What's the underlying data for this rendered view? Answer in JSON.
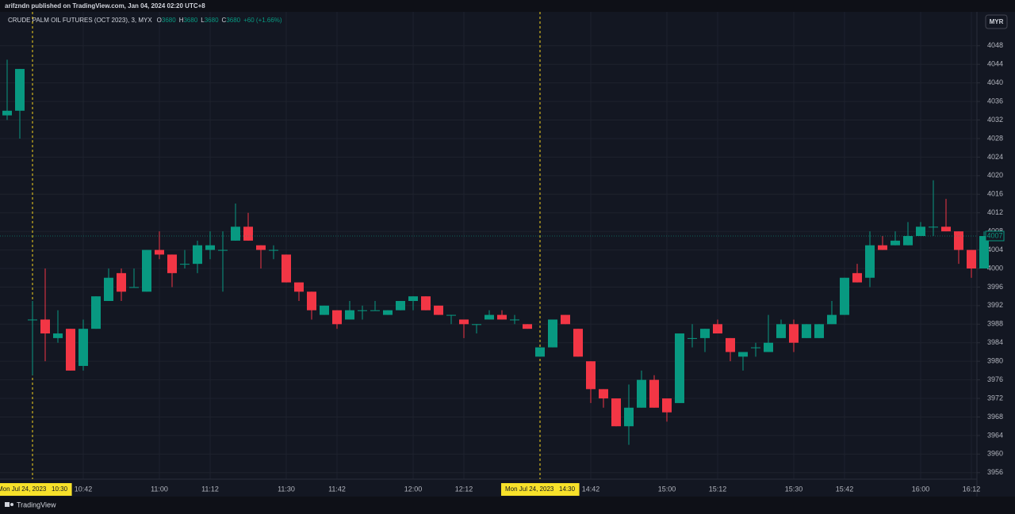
{
  "header": {
    "published": "arifzndn published on TradingView.com, Jan 04, 2024 02:20 UTC+8"
  },
  "footer": {
    "brand": "TradingView"
  },
  "chart_data": {
    "type": "candlestick",
    "title": "CRUDE PALM OIL FUTURES (OCT 2023), 3, MYX",
    "legend_ohlc": [
      {
        "key": "O",
        "value": 3680
      },
      {
        "key": "H",
        "value": 3680
      },
      {
        "key": "L",
        "value": 3680
      },
      {
        "key": "C",
        "value": 3680
      }
    ],
    "legend_change": "+60 (+1.66%)",
    "currency": "MYR",
    "last_price": 4007,
    "up_color": "#089981",
    "down_color": "#f23645",
    "grid": true,
    "categories": [
      null,
      null,
      "Mon Jul 24, 2023   10:30",
      null,
      null,
      null,
      "10:42",
      null,
      null,
      null,
      null,
      null,
      "11:00",
      null,
      null,
      null,
      "11:12",
      null,
      null,
      null,
      null,
      null,
      "11:30",
      null,
      null,
      null,
      "11:42",
      null,
      null,
      null,
      null,
      null,
      "12:00",
      null,
      null,
      null,
      "12:12",
      null,
      null,
      null,
      null,
      null,
      "Mon Jul 24, 2023   14:30",
      null,
      null,
      null,
      "14:42",
      null,
      null,
      null,
      null,
      null,
      "15:00",
      null,
      null,
      null,
      "15:12",
      null,
      null,
      null,
      null,
      null,
      "15:30",
      null,
      null,
      null,
      "15:42",
      null,
      null,
      null,
      null,
      null,
      "16:00",
      null,
      null,
      null,
      "16:12",
      null
    ],
    "open": [
      4033,
      4034,
      3989,
      3989,
      3985,
      3987,
      3979,
      3987,
      3993,
      3999,
      3996,
      3995,
      4004,
      4003,
      4001,
      4001,
      4004,
      4004,
      4006,
      4009,
      4005,
      4004,
      4003,
      3997,
      3995,
      3990,
      3991,
      3989,
      3991,
      3991,
      3990,
      3991,
      3993,
      3994,
      3992,
      3990,
      3989,
      3988,
      3989,
      3990,
      3989,
      3988,
      3981,
      3983,
      3990,
      3987,
      3980,
      3974,
      3972,
      3966,
      3970,
      3976,
      3972,
      3971,
      3985,
      3985,
      3988,
      3985,
      3981,
      3983,
      3982,
      3985,
      3988,
      3985,
      3985,
      3988,
      3990,
      3999,
      3998,
      4005,
      4005,
      4005,
      4007,
      4009,
      4009,
      4008,
      4004,
      4000
    ],
    "high": [
      4045,
      4043,
      3993,
      4000,
      3991,
      3987,
      3989,
      3994,
      4000,
      4000,
      4000,
      4004,
      4008,
      4003,
      4004,
      4006,
      4008,
      4008,
      4014,
      4012,
      4005,
      4005,
      4003,
      3997,
      3995,
      3992,
      3991,
      3993,
      3992,
      3993,
      3991,
      3993,
      3994,
      3994,
      3992,
      3990,
      3989,
      3988,
      3991,
      3991,
      3990,
      3988,
      3983,
      3989,
      3990,
      3987,
      3980,
      3974,
      3972,
      3975,
      3978,
      3977,
      3972,
      3986,
      3988,
      3987,
      3989,
      3985,
      3982,
      3984,
      3990,
      3989,
      3989,
      3988,
      3988,
      3993,
      3998,
      4001,
      4008,
      4007,
      4008,
      4010,
      4010,
      4019,
      4015,
      4008,
      4004,
      4008
    ],
    "low": [
      4032,
      4028,
      3977,
      3980,
      3984,
      3978,
      3978,
      3987,
      3993,
      3993,
      3996,
      3995,
      4002,
      3996,
      4000,
      3999,
      4002,
      3995,
      4006,
      4006,
      4000,
      4002,
      3997,
      3993,
      3989,
      3990,
      3987,
      3989,
      3989,
      3991,
      3990,
      3991,
      3991,
      3991,
      3990,
      3988,
      3985,
      3986,
      3989,
      3989,
      3988,
      3987,
      3981,
      3983,
      3988,
      3981,
      3971,
      3970,
      3966,
      3962,
      3970,
      3970,
      3967,
      3971,
      3983,
      3982,
      3986,
      3980,
      3978,
      3981,
      3982,
      3985,
      3982,
      3985,
      3985,
      3988,
      3990,
      3997,
      3996,
      4004,
      4005,
      4005,
      4007,
      4007,
      4008,
      4001,
      3998,
      4000
    ],
    "close": [
      4034,
      4043,
      3989,
      3986,
      3986,
      3978,
      3987,
      3994,
      3998,
      3995,
      3996,
      4004,
      4003,
      3999,
      4001,
      4005,
      4005,
      4004,
      4009,
      4006,
      4004,
      4004,
      3997,
      3995,
      3991,
      3992,
      3988,
      3991,
      3991,
      3991,
      3991,
      3993,
      3994,
      3991,
      3990,
      3990,
      3988,
      3988,
      3990,
      3989,
      3989,
      3987,
      3983,
      3989,
      3988,
      3981,
      3974,
      3972,
      3966,
      3970,
      3976,
      3970,
      3969,
      3986,
      3985,
      3987,
      3986,
      3982,
      3982,
      3983,
      3984,
      3988,
      3984,
      3988,
      3988,
      3990,
      3998,
      3997,
      4005,
      4004,
      4006,
      4007,
      4009,
      4009,
      4008,
      4004,
      4000,
      4007
    ],
    "ylim": [
      3954.6,
      4055.3
    ],
    "yticks": [
      3956,
      3960,
      3964,
      3968,
      3972,
      3976,
      3980,
      3984,
      3988,
      3992,
      3996,
      4000,
      4004,
      4008,
      4012,
      4016,
      4020,
      4024,
      4028,
      4032,
      4036,
      4040,
      4044,
      4048
    ]
  }
}
